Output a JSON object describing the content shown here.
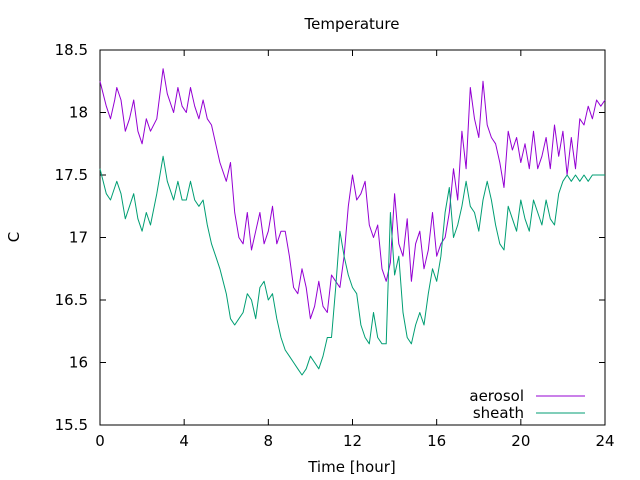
{
  "chart_data": {
    "type": "line",
    "title": "Temperature",
    "xlabel": "Time [hour]",
    "ylabel": "C",
    "xlim": [
      0,
      24
    ],
    "ylim": [
      15.5,
      18.5
    ],
    "xticks": [
      0,
      4,
      8,
      12,
      16,
      20,
      24
    ],
    "yticks": [
      15.5,
      16,
      16.5,
      17,
      17.5,
      18,
      18.5
    ],
    "xtick_labels": [
      "0",
      "4",
      "8",
      "12",
      "16",
      "20",
      "24"
    ],
    "ytick_labels": [
      "15.5",
      "16",
      "16.5",
      "17",
      "17.5",
      "18",
      "18.5"
    ],
    "grid": false,
    "legend_position": "bottom-right",
    "series": [
      {
        "name": "aerosol",
        "color": "#9400d3",
        "x": [
          0,
          0.3,
          0.5,
          0.7,
          0.8,
          1.0,
          1.2,
          1.4,
          1.6,
          1.8,
          2.0,
          2.2,
          2.4,
          2.7,
          3.0,
          3.2,
          3.5,
          3.7,
          3.9,
          4.1,
          4.3,
          4.5,
          4.7,
          4.9,
          5.1,
          5.3,
          5.5,
          5.7,
          6.0,
          6.2,
          6.4,
          6.6,
          6.8,
          7.0,
          7.2,
          7.4,
          7.6,
          7.8,
          8.0,
          8.2,
          8.4,
          8.6,
          8.8,
          9.0,
          9.2,
          9.4,
          9.6,
          9.8,
          10.0,
          10.2,
          10.4,
          10.6,
          10.8,
          11.0,
          11.2,
          11.4,
          11.6,
          11.8,
          12.0,
          12.2,
          12.4,
          12.6,
          12.8,
          13.0,
          13.2,
          13.4,
          13.6,
          13.8,
          14.0,
          14.2,
          14.4,
          14.6,
          14.8,
          15.0,
          15.2,
          15.4,
          15.6,
          15.8,
          16.0,
          16.2,
          16.4,
          16.6,
          16.8,
          17.0,
          17.2,
          17.4,
          17.6,
          17.8,
          18.0,
          18.2,
          18.4,
          18.6,
          18.8,
          19.0,
          19.2,
          19.4,
          19.6,
          19.8,
          20.0,
          20.2,
          20.4,
          20.6,
          20.8,
          21.0,
          21.2,
          21.4,
          21.6,
          21.8,
          22.0,
          22.2,
          22.4,
          22.6,
          22.8,
          23.0,
          23.2,
          23.4,
          23.6,
          23.8,
          24.0
        ],
        "y": [
          18.25,
          18.05,
          17.95,
          18.1,
          18.2,
          18.1,
          17.85,
          17.95,
          18.1,
          17.85,
          17.75,
          17.95,
          17.85,
          17.95,
          18.35,
          18.15,
          18.0,
          18.2,
          18.05,
          18.0,
          18.2,
          18.05,
          17.95,
          18.1,
          17.95,
          17.9,
          17.75,
          17.6,
          17.45,
          17.6,
          17.2,
          17.0,
          16.95,
          17.2,
          16.9,
          17.05,
          17.2,
          16.95,
          17.05,
          17.25,
          16.95,
          17.05,
          17.05,
          16.85,
          16.6,
          16.55,
          16.75,
          16.6,
          16.35,
          16.45,
          16.65,
          16.45,
          16.4,
          16.7,
          16.65,
          16.6,
          16.85,
          17.25,
          17.5,
          17.3,
          17.35,
          17.45,
          17.1,
          17.0,
          17.1,
          16.75,
          16.65,
          16.8,
          17.35,
          16.95,
          16.85,
          17.15,
          16.65,
          16.95,
          17.05,
          16.75,
          16.9,
          17.2,
          16.85,
          16.95,
          17.0,
          17.2,
          17.55,
          17.3,
          17.85,
          17.55,
          18.2,
          17.95,
          17.8,
          18.25,
          17.9,
          17.8,
          17.75,
          17.6,
          17.4,
          17.85,
          17.7,
          17.8,
          17.6,
          17.75,
          17.55,
          17.85,
          17.55,
          17.65,
          17.8,
          17.55,
          17.9,
          17.65,
          17.85,
          17.5,
          17.8,
          17.55,
          17.95,
          17.9,
          18.05,
          17.95,
          18.1,
          18.05,
          18.1
        ]
      },
      {
        "name": "sheath",
        "color": "#009e73",
        "x": [
          0,
          0.3,
          0.5,
          0.7,
          0.8,
          1.0,
          1.2,
          1.4,
          1.6,
          1.8,
          2.0,
          2.2,
          2.4,
          2.7,
          3.0,
          3.2,
          3.5,
          3.7,
          3.9,
          4.1,
          4.3,
          4.5,
          4.7,
          4.9,
          5.1,
          5.3,
          5.5,
          5.7,
          6.0,
          6.2,
          6.4,
          6.6,
          6.8,
          7.0,
          7.2,
          7.4,
          7.6,
          7.8,
          8.0,
          8.2,
          8.4,
          8.6,
          8.8,
          9.0,
          9.2,
          9.4,
          9.6,
          9.8,
          10.0,
          10.2,
          10.4,
          10.6,
          10.8,
          11.0,
          11.2,
          11.4,
          11.6,
          11.8,
          12.0,
          12.2,
          12.4,
          12.6,
          12.8,
          13.0,
          13.2,
          13.4,
          13.6,
          13.8,
          14.0,
          14.2,
          14.4,
          14.6,
          14.8,
          15.0,
          15.2,
          15.4,
          15.6,
          15.8,
          16.0,
          16.2,
          16.4,
          16.6,
          16.8,
          17.0,
          17.2,
          17.4,
          17.6,
          17.8,
          18.0,
          18.2,
          18.4,
          18.6,
          18.8,
          19.0,
          19.2,
          19.4,
          19.6,
          19.8,
          20.0,
          20.2,
          20.4,
          20.6,
          20.8,
          21.0,
          21.2,
          21.4,
          21.6,
          21.8,
          22.0,
          22.2,
          22.4,
          22.6,
          22.8,
          23.0,
          23.2,
          23.4,
          23.6,
          23.8,
          24.0
        ],
        "y": [
          17.55,
          17.35,
          17.3,
          17.4,
          17.45,
          17.35,
          17.15,
          17.25,
          17.35,
          17.15,
          17.05,
          17.2,
          17.1,
          17.35,
          17.65,
          17.45,
          17.3,
          17.45,
          17.3,
          17.3,
          17.45,
          17.3,
          17.25,
          17.3,
          17.1,
          16.95,
          16.85,
          16.75,
          16.55,
          16.35,
          16.3,
          16.35,
          16.4,
          16.55,
          16.5,
          16.35,
          16.6,
          16.65,
          16.5,
          16.55,
          16.35,
          16.2,
          16.1,
          16.05,
          16.0,
          15.95,
          15.9,
          15.95,
          16.05,
          16.0,
          15.95,
          16.05,
          16.2,
          16.2,
          16.6,
          17.05,
          16.85,
          16.7,
          16.6,
          16.55,
          16.3,
          16.2,
          16.15,
          16.4,
          16.2,
          16.15,
          16.15,
          17.2,
          16.7,
          16.85,
          16.4,
          16.2,
          16.15,
          16.3,
          16.4,
          16.3,
          16.55,
          16.75,
          16.65,
          16.85,
          17.2,
          17.4,
          17.0,
          17.1,
          17.25,
          17.45,
          17.25,
          17.2,
          17.05,
          17.3,
          17.45,
          17.3,
          17.1,
          16.95,
          16.9,
          17.25,
          17.15,
          17.05,
          17.3,
          17.15,
          17.05,
          17.3,
          17.2,
          17.1,
          17.3,
          17.15,
          17.1,
          17.35,
          17.45,
          17.5,
          17.45,
          17.5,
          17.45,
          17.5,
          17.45,
          17.5,
          17.5,
          17.5,
          17.5
        ]
      }
    ]
  }
}
